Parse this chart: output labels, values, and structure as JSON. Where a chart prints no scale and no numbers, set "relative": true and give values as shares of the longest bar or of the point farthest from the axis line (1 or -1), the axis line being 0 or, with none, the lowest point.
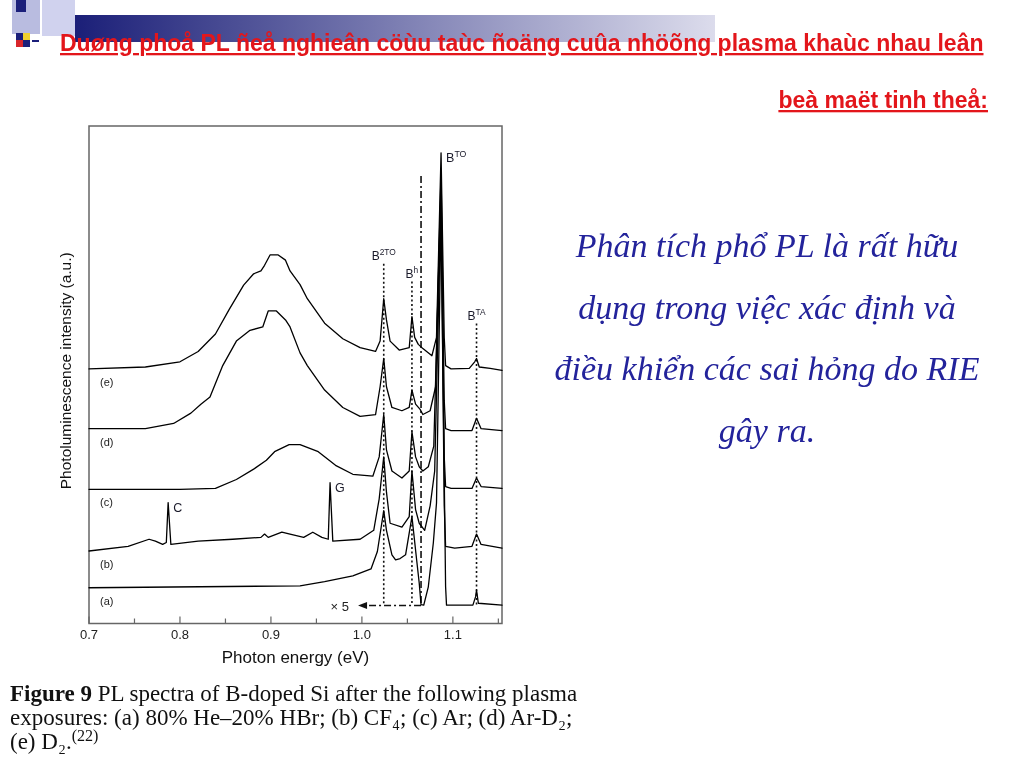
{
  "chart_data": {
    "type": "line",
    "title": "Duøng phoå PL ñeå nghieân cöùu taùc ñoäng cuûa nhöõng plasma khaùc nhau leân beà maët tinh theå:",
    "xlabel": "Photon energy (eV)",
    "ylabel": "Photoluminescence intensity (a.u.)",
    "relative": true,
    "line_style": "solid",
    "xlim": [
      0.7,
      1.154
    ],
    "xticks": [
      0.7,
      {
        "value": 0.75,
        "label": null
      },
      0.8,
      {
        "value": 0.85,
        "label": null
      },
      0.9,
      {
        "value": 0.95,
        "label": null
      },
      {
        "value": 1,
        "label": "1.0"
      },
      {
        "value": 1.05,
        "label": null
      },
      1.1,
      {
        "value": 1.15,
        "label": null
      }
    ],
    "ref_lines": [
      {
        "axis": "x",
        "value": 1.024,
        "label": "B$^{2TO}$",
        "line_style": "dotted"
      },
      {
        "axis": "x",
        "value": 1.055,
        "label": "B$^{h}$",
        "line_style": "dotted"
      },
      {
        "axis": "x",
        "value": 1.065,
        "line_style": "dashed"
      },
      {
        "axis": "x",
        "value": 1.126,
        "label": "B$^{TA}$",
        "line_style": "dotted"
      }
    ],
    "annotations": [
      "Figure 9 PL spectra of B-doped Si after the following plasma exposures: (a) 80% He–20% HBr; (b) CF₄; (c) Ar; (d) Ar-D₂; (e) D₂.$^{(22)}$",
      "Phân tích phổ PL là rất hữu dụng trong việc xác định và điều khiển các sai hỏng do RIE gây ra.",
      "× 5",
      {
        "text": "B$^{TO}$",
        "x": 1.087,
        "y": 1.0
      },
      {
        "text": "C",
        "x": 0.787,
        "y": 0.257
      },
      {
        "text": "G",
        "x": 0.965,
        "y": 0.299
      }
    ],
    "series": [
      {
        "name": "(a)",
        "color": "#000000",
        "x": [
          0.7,
          0.932,
          0.959,
          0.99,
          1.01,
          1.017,
          1.024,
          1.027,
          1.033,
          1.037,
          1.042,
          1.048,
          1.055,
          1.06,
          1.063,
          1.065,
          1.068,
          1.073,
          1.0785,
          1.082,
          1.087,
          1.092,
          1.093,
          1.122,
          1.125,
          1.126,
          1.128,
          1.154
        ],
        "values": [
          0.076,
          0.08,
          0.089,
          0.101,
          0.116,
          0.153,
          0.24,
          0.198,
          0.146,
          0.135,
          0.138,
          0.146,
          0.227,
          0.138,
          0.086,
          0.04,
          0.039,
          0.078,
          0.171,
          0.256,
          0.87,
          0.078,
          0.039,
          0.039,
          0.057,
          0.071,
          0.043,
          0.039
        ]
      },
      {
        "name": "(b)",
        "color": "#000000",
        "x": [
          0.7,
          0.743,
          0.766,
          0.773,
          0.781,
          0.785,
          0.787,
          0.79,
          0.82,
          0.858,
          0.889,
          0.893,
          0.897,
          0.912,
          0.921,
          0.936,
          0.946,
          0.956,
          0.963,
          0.965,
          0.968,
          0.998,
          1.013,
          1.019,
          1.024,
          1.027,
          1.031,
          1.044,
          1.052,
          1.055,
          1.059,
          1.063,
          1.069,
          1.075,
          1.08,
          1.087,
          1.0905,
          1.092,
          1.102,
          1.121,
          1.126,
          1.131,
          1.154
        ],
        "values": [
          0.154,
          0.164,
          0.179,
          0.175,
          0.168,
          0.172,
          0.257,
          0.168,
          0.175,
          0.179,
          0.183,
          0.19,
          0.183,
          0.194,
          0.19,
          0.183,
          0.194,
          0.183,
          0.179,
          0.299,
          0.175,
          0.179,
          0.198,
          0.265,
          0.354,
          0.279,
          0.213,
          0.205,
          0.227,
          0.324,
          0.242,
          0.213,
          0.198,
          0.25,
          0.324,
          0.9,
          0.25,
          0.164,
          0.16,
          0.164,
          0.19,
          0.168,
          0.16
        ]
      },
      {
        "name": "(c)",
        "color": "#000000",
        "x": [
          0.7,
          0.8,
          0.839,
          0.862,
          0.881,
          0.895,
          0.904,
          0.92,
          0.932,
          0.952,
          0.971,
          0.99,
          1.012,
          1.019,
          1.024,
          1.027,
          1.033,
          1.044,
          1.052,
          1.055,
          1.059,
          1.063,
          1.067,
          1.073,
          1.079,
          1.087,
          1.0905,
          1.092,
          1.098,
          1.121,
          1.126,
          1.131,
          1.154
        ],
        "values": [
          0.285,
          0.285,
          0.287,
          0.306,
          0.328,
          0.347,
          0.365,
          0.38,
          0.38,
          0.365,
          0.336,
          0.317,
          0.313,
          0.354,
          0.444,
          0.369,
          0.324,
          0.309,
          0.324,
          0.407,
          0.354,
          0.333,
          0.324,
          0.333,
          0.377,
          0.93,
          0.354,
          0.291,
          0.287,
          0.287,
          0.309,
          0.291,
          0.287
        ]
      },
      {
        "name": "(d)",
        "color": "#000000",
        "x": [
          0.7,
          0.762,
          0.793,
          0.812,
          0.823,
          0.833,
          0.847,
          0.862,
          0.877,
          0.891,
          0.897,
          0.906,
          0.916,
          0.921,
          0.932,
          0.94,
          0.959,
          0.979,
          0.998,
          1.015,
          1.02,
          1.024,
          1.027,
          1.033,
          1.044,
          1.052,
          1.055,
          1.059,
          1.064,
          1.067,
          1.075,
          1.081,
          1.087,
          1.0905,
          1.092,
          1.098,
          1.121,
          1.126,
          1.131,
          1.154
        ],
        "values": [
          0.414,
          0.414,
          0.425,
          0.447,
          0.466,
          0.481,
          0.548,
          0.6,
          0.623,
          0.63,
          0.664,
          0.664,
          0.645,
          0.63,
          0.575,
          0.548,
          0.496,
          0.459,
          0.44,
          0.444,
          0.503,
          0.563,
          0.503,
          0.459,
          0.452,
          0.459,
          0.496,
          0.466,
          0.455,
          0.444,
          0.452,
          0.503,
          0.96,
          0.474,
          0.414,
          0.41,
          0.41,
          0.436,
          0.414,
          0.41
        ]
      },
      {
        "name": "(e)",
        "color": "#000000",
        "x": [
          0.7,
          0.762,
          0.8,
          0.82,
          0.839,
          0.854,
          0.87,
          0.881,
          0.889,
          0.893,
          0.899,
          0.908,
          0.916,
          0.921,
          0.932,
          0.94,
          0.959,
          0.979,
          0.998,
          1.015,
          1.02,
          1.024,
          1.027,
          1.031,
          1.041,
          1.052,
          1.055,
          1.058,
          1.062,
          1.066,
          1.077,
          1.082,
          1.087,
          1.0905,
          1.092,
          1.098,
          1.118,
          1.124,
          1.126,
          1.129,
          1.141,
          1.154
        ],
        "values": [
          0.541,
          0.545,
          0.556,
          0.578,
          0.615,
          0.667,
          0.719,
          0.743,
          0.749,
          0.761,
          0.783,
          0.783,
          0.772,
          0.749,
          0.72,
          0.69,
          0.638,
          0.605,
          0.586,
          0.578,
          0.6,
          0.69,
          0.645,
          0.6,
          0.581,
          0.586,
          0.652,
          0.608,
          0.593,
          0.586,
          0.569,
          0.608,
          1.0,
          0.608,
          0.548,
          0.541,
          0.542,
          0.556,
          0.563,
          0.545,
          0.542,
          0.538
        ]
      }
    ]
  }
}
